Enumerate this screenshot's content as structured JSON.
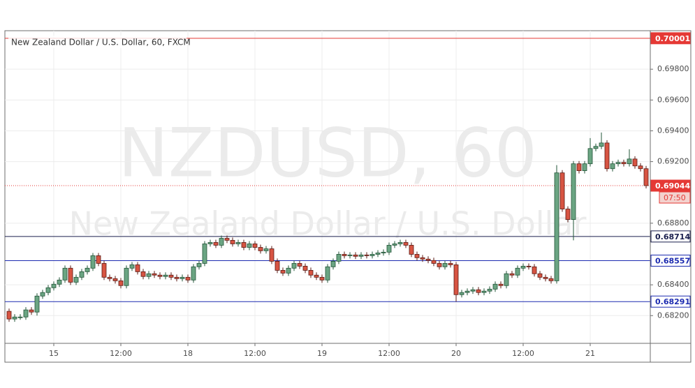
{
  "chart_data": {
    "type": "candlestick",
    "title": "New Zealand Dollar / U.S. Dollar, 60, FXCM",
    "watermark": "NZDUSD, 60",
    "watermark_subtitle": "New Zealand Dollar / U.S. Dollar",
    "categories": [
      null,
      null,
      null,
      null,
      null,
      null,
      null,
      null,
      "15",
      null,
      null,
      null,
      null,
      null,
      null,
      null,
      null,
      null,
      null,
      null,
      "12:00",
      null,
      null,
      null,
      null,
      null,
      null,
      null,
      null,
      null,
      null,
      null,
      "18",
      null,
      null,
      null,
      null,
      null,
      null,
      null,
      null,
      null,
      null,
      null,
      "12:00",
      null,
      null,
      null,
      null,
      null,
      null,
      null,
      null,
      null,
      null,
      null,
      "19",
      null,
      null,
      null,
      null,
      null,
      null,
      null,
      null,
      null,
      null,
      null,
      "12:00",
      null,
      null,
      null,
      null,
      null,
      null,
      null,
      null,
      null,
      null,
      null,
      "20",
      null,
      null,
      null,
      null,
      null,
      null,
      null,
      null,
      null,
      null,
      null,
      "12:00",
      null,
      null,
      null,
      null,
      null,
      null,
      null,
      null,
      null,
      null,
      null,
      "21",
      null,
      null,
      null,
      null,
      null,
      null,
      null,
      null,
      null,
      null
    ],
    "open": [
      0.68228,
      0.68178,
      0.68191,
      0.68191,
      0.68237,
      0.68223,
      0.68327,
      0.6835,
      0.68381,
      0.68404,
      0.68431,
      0.68508,
      0.68417,
      0.68449,
      0.68485,
      0.68508,
      0.68589,
      0.68539,
      0.68449,
      0.6844,
      0.68426,
      0.68395,
      0.68508,
      0.6853,
      0.68485,
      0.68454,
      0.68472,
      0.68463,
      0.68454,
      0.68463,
      0.68449,
      0.6844,
      0.68449,
      0.68431,
      0.68517,
      0.68539,
      0.68666,
      0.68675,
      0.68657,
      0.68702,
      0.68689,
      0.68666,
      0.68675,
      0.68643,
      0.68666,
      0.68643,
      0.68621,
      0.68634,
      0.68553,
      0.68494,
      0.68476,
      0.68508,
      0.68539,
      0.68521,
      0.68494,
      0.68463,
      0.68449,
      0.68431,
      0.68517,
      0.68553,
      0.68598,
      0.68589,
      0.68594,
      0.68585,
      0.68594,
      0.68589,
      0.68598,
      0.68607,
      0.68612,
      0.68657,
      0.68666,
      0.68675,
      0.68657,
      0.68598,
      0.68576,
      0.68567,
      0.68558,
      0.68539,
      0.68517,
      0.68539,
      0.6853,
      0.68336,
      0.6835,
      0.68359,
      0.68368,
      0.6835,
      0.68359,
      0.68372,
      0.68404,
      0.68395,
      0.68472,
      0.68463,
      0.68508,
      0.68521,
      0.68517,
      0.68472,
      0.68449,
      0.6844,
      0.68426,
      0.69127,
      0.68892,
      0.68824,
      0.69186,
      0.69141,
      0.69186,
      0.69285,
      0.69299,
      0.69321,
      0.69154,
      0.69186,
      0.69195,
      0.69186,
      0.69217,
      0.69172,
      0.69154
    ],
    "high": [
      0.68246,
      0.68209,
      0.68209,
      0.68255,
      0.68255,
      0.68345,
      0.68368,
      0.68399,
      0.68422,
      0.68449,
      0.68526,
      0.68526,
      0.68467,
      0.68503,
      0.68526,
      0.68607,
      0.68607,
      0.68557,
      0.68467,
      0.68458,
      0.68444,
      0.68526,
      0.68548,
      0.68548,
      0.68503,
      0.6849,
      0.6849,
      0.68481,
      0.68481,
      0.68481,
      0.68467,
      0.68467,
      0.68467,
      0.68535,
      0.68557,
      0.68684,
      0.68693,
      0.68693,
      0.6872,
      0.6872,
      0.68707,
      0.68693,
      0.68693,
      0.68684,
      0.68684,
      0.68661,
      0.68652,
      0.68652,
      0.68571,
      0.68512,
      0.68526,
      0.68557,
      0.68557,
      0.68539,
      0.68512,
      0.68481,
      0.68467,
      0.68535,
      0.68571,
      0.68616,
      0.68616,
      0.68612,
      0.68612,
      0.68612,
      0.68612,
      0.68616,
      0.68625,
      0.6863,
      0.68675,
      0.68684,
      0.68693,
      0.68693,
      0.68675,
      0.68616,
      0.68594,
      0.68585,
      0.68576,
      0.68557,
      0.68557,
      0.68557,
      0.68548,
      0.68368,
      0.68377,
      0.68386,
      0.68386,
      0.68377,
      0.6839,
      0.68422,
      0.68422,
      0.6849,
      0.6849,
      0.68526,
      0.68539,
      0.68539,
      0.68535,
      0.6849,
      0.68467,
      0.68458,
      0.69177,
      0.69145,
      0.6891,
      0.69204,
      0.69204,
      0.69204,
      0.69353,
      0.69317,
      0.69389,
      0.69339,
      0.69204,
      0.69213,
      0.69213,
      0.6928,
      0.69235,
      0.6919,
      0.69172
    ],
    "low": [
      0.6816,
      0.6816,
      0.68173,
      0.68173,
      0.68205,
      0.682,
      0.68309,
      0.68332,
      0.68363,
      0.68386,
      0.68413,
      0.68399,
      0.68399,
      0.68431,
      0.68467,
      0.6849,
      0.68521,
      0.68431,
      0.68422,
      0.68408,
      0.68377,
      0.68377,
      0.6849,
      0.68467,
      0.68436,
      0.68436,
      0.68445,
      0.68436,
      0.68436,
      0.68431,
      0.68422,
      0.68422,
      0.68413,
      0.68413,
      0.68499,
      0.68521,
      0.68648,
      0.68639,
      0.68639,
      0.68671,
      0.68648,
      0.68648,
      0.68625,
      0.68625,
      0.68625,
      0.68603,
      0.68603,
      0.68535,
      0.68476,
      0.68458,
      0.68458,
      0.6849,
      0.68503,
      0.68476,
      0.68445,
      0.68431,
      0.68413,
      0.68413,
      0.68499,
      0.68535,
      0.68571,
      0.68571,
      0.68567,
      0.68567,
      0.68571,
      0.68571,
      0.6858,
      0.68589,
      0.68594,
      0.68639,
      0.68648,
      0.68639,
      0.6858,
      0.68558,
      0.68549,
      0.6854,
      0.68521,
      0.68499,
      0.68499,
      0.68512,
      0.68291,
      0.68318,
      0.68332,
      0.68341,
      0.68332,
      0.68332,
      0.68341,
      0.68354,
      0.68377,
      0.68377,
      0.68445,
      0.68445,
      0.6849,
      0.68499,
      0.68454,
      0.68431,
      0.68422,
      0.68408,
      0.68408,
      0.68874,
      0.68806,
      0.68689,
      0.69123,
      0.69123,
      0.69168,
      0.69267,
      0.69281,
      0.69136,
      0.69136,
      0.69168,
      0.69168,
      0.69168,
      0.69154,
      0.69136,
      0.69026
    ],
    "close": [
      0.68178,
      0.68191,
      0.68191,
      0.68237,
      0.68223,
      0.68327,
      0.6835,
      0.68381,
      0.68404,
      0.68431,
      0.68508,
      0.68417,
      0.68449,
      0.68485,
      0.68508,
      0.68589,
      0.68539,
      0.68449,
      0.6844,
      0.68426,
      0.68395,
      0.68508,
      0.6853,
      0.68485,
      0.68454,
      0.68472,
      0.68463,
      0.68454,
      0.68463,
      0.68449,
      0.6844,
      0.68449,
      0.68431,
      0.68517,
      0.68539,
      0.68666,
      0.68675,
      0.68657,
      0.68702,
      0.68689,
      0.68666,
      0.68675,
      0.68643,
      0.68666,
      0.68643,
      0.68621,
      0.68634,
      0.68553,
      0.68494,
      0.68476,
      0.68508,
      0.68539,
      0.68521,
      0.68494,
      0.68463,
      0.68449,
      0.68431,
      0.68517,
      0.68553,
      0.68598,
      0.68589,
      0.68594,
      0.68585,
      0.68594,
      0.68589,
      0.68598,
      0.68607,
      0.68612,
      0.68657,
      0.68666,
      0.68675,
      0.68657,
      0.68598,
      0.68576,
      0.68567,
      0.68558,
      0.68539,
      0.68517,
      0.68539,
      0.6853,
      0.68336,
      0.6835,
      0.68359,
      0.68368,
      0.6835,
      0.68359,
      0.68372,
      0.68404,
      0.68395,
      0.68472,
      0.68463,
      0.68508,
      0.68521,
      0.68517,
      0.68472,
      0.68449,
      0.6844,
      0.68426,
      0.69127,
      0.68892,
      0.68824,
      0.69186,
      0.69141,
      0.69186,
      0.69285,
      0.69299,
      0.69321,
      0.69154,
      0.69186,
      0.69195,
      0.69186,
      0.69217,
      0.69172,
      0.69154,
      0.69044
    ],
    "up_color": "#6ba583",
    "down_color": "#d75442",
    "ylim": [
      0.6802,
      0.7005
    ],
    "yticks": [
      {
        "value": 0.682,
        "label": "0.68200"
      },
      {
        "value": 0.684,
        "label": "0.68400"
      },
      {
        "value": 0.688,
        "label": "0.68800"
      },
      {
        "value": 0.692,
        "label": "0.69200"
      },
      {
        "value": 0.694,
        "label": "0.69400"
      },
      {
        "value": 0.696,
        "label": "0.69600"
      },
      {
        "value": 0.698,
        "label": "0.69800"
      }
    ],
    "grid": true,
    "levels": [
      {
        "value": 0.70001,
        "color": "#e53935",
        "style": "solid",
        "label_style": "filled"
      },
      {
        "value": 0.69044,
        "color": "#e53935",
        "style": "dotted",
        "label_style": "filled",
        "countdown": "07:50"
      },
      {
        "value": 0.68714,
        "color": "#1a1f4e",
        "style": "solid",
        "label_style": "outlined"
      },
      {
        "value": 0.68557,
        "color": "#1c2bb0",
        "style": "solid",
        "label_style": "outlined"
      },
      {
        "value": 0.68291,
        "color": "#1c2bb0",
        "style": "solid",
        "label_style": "outlined"
      }
    ]
  }
}
